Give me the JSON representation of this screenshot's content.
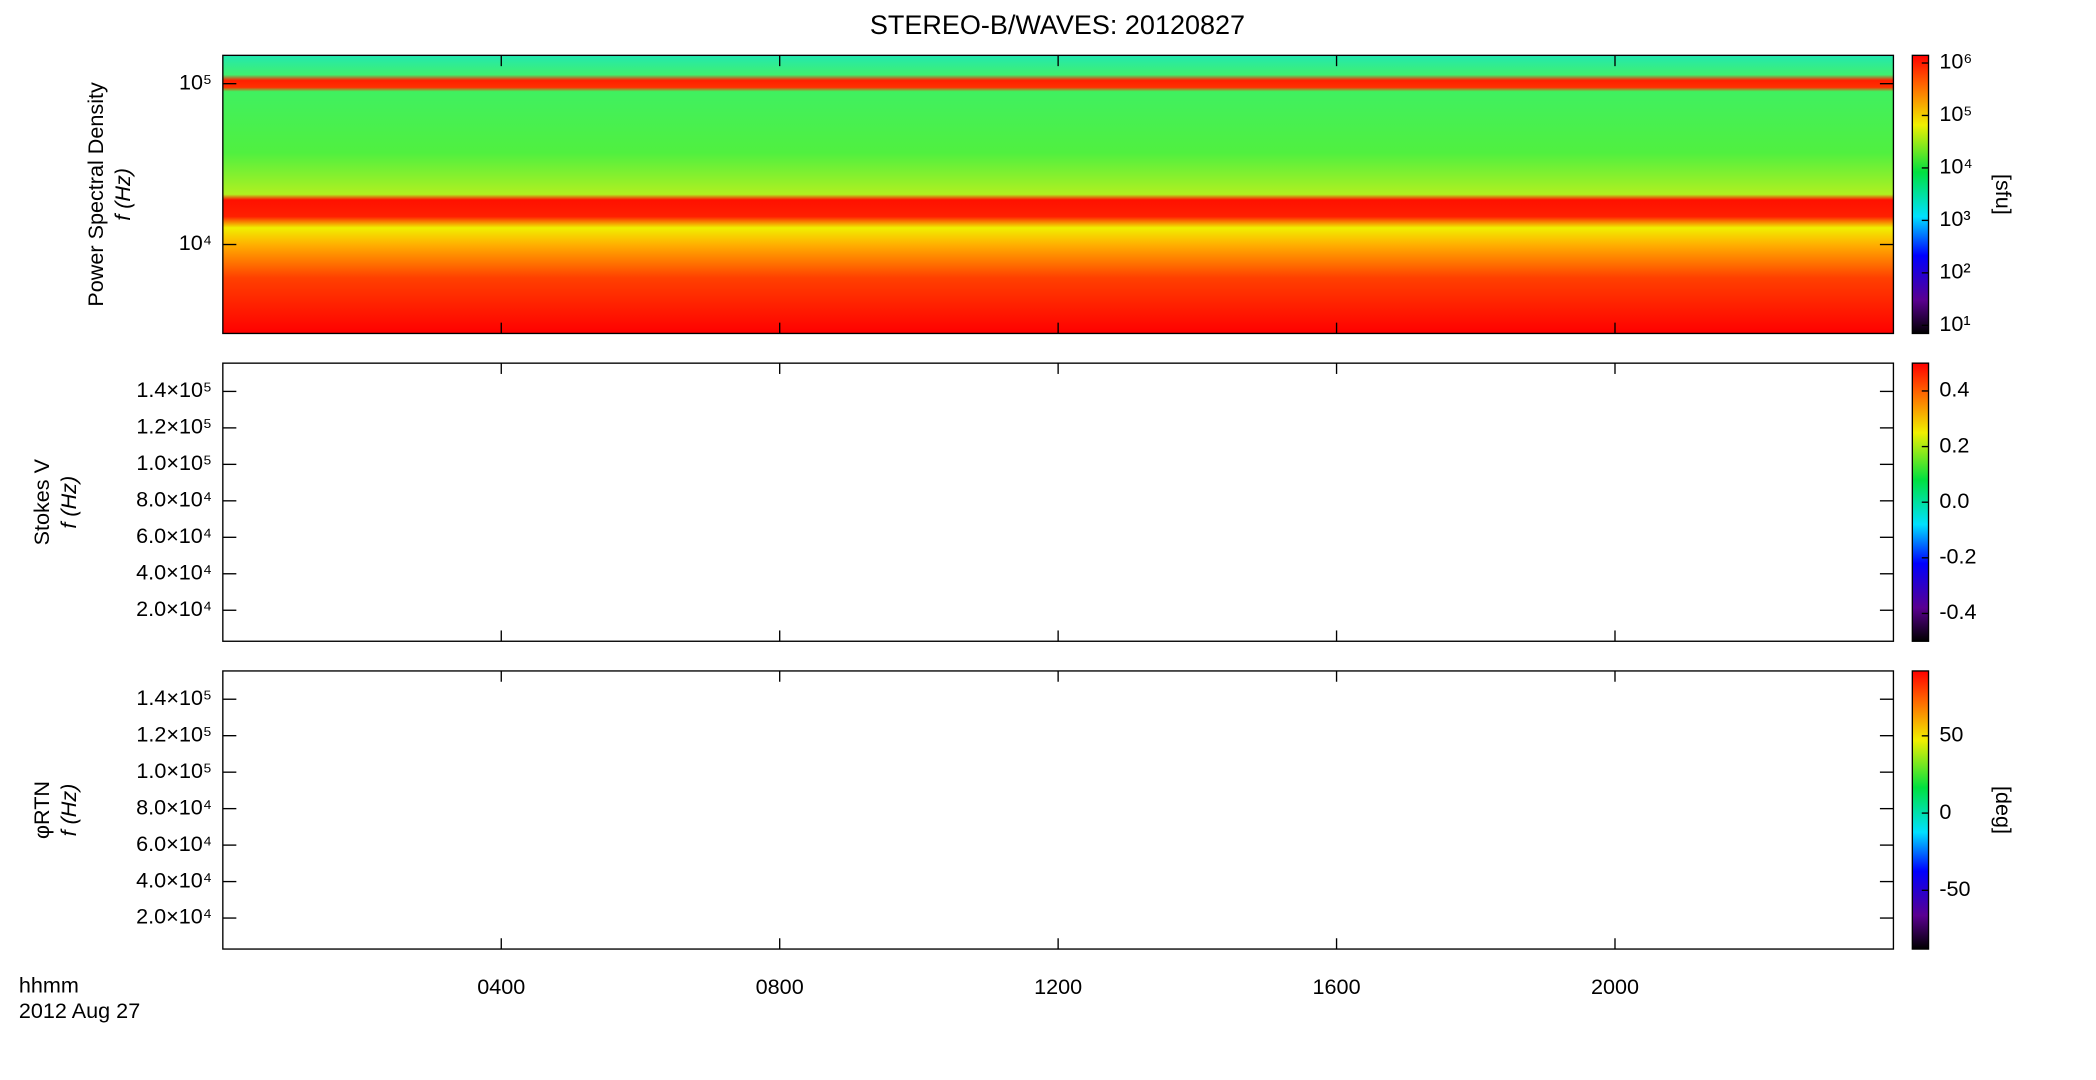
{
  "chart_data": [
    {
      "type": "spectrogram",
      "title": "STEREO-B/WAVES: 20120827",
      "y_label": "Power Spectral Density",
      "y_sublabel": "f (Hz)",
      "log_y": true,
      "ylim": [
        2800,
        150000
      ],
      "yticks": [
        {
          "value": 10000,
          "label": "10⁴"
        },
        {
          "value": 100000,
          "label": "10⁵"
        }
      ],
      "colorbar": {
        "label": "[sfu]",
        "log": true,
        "lim": [
          7,
          1400000
        ],
        "ticks": [
          {
            "value": 10,
            "label": "10¹"
          },
          {
            "value": 100,
            "label": "10²"
          },
          {
            "value": 1000,
            "label": "10³"
          },
          {
            "value": 10000,
            "label": "10⁴"
          },
          {
            "value": 100000,
            "label": "10⁵"
          },
          {
            "value": 1000000,
            "label": "10⁶"
          }
        ]
      }
    },
    {
      "type": "spectrogram",
      "y_label": "Stokes V",
      "y_sublabel": "f (Hz)",
      "log_y": false,
      "ylim": [
        3000,
        155500
      ],
      "yticks": [
        {
          "value": 20000,
          "label": "2.0×10⁴"
        },
        {
          "value": 40000,
          "label": "4.0×10⁴"
        },
        {
          "value": 60000,
          "label": "6.0×10⁴"
        },
        {
          "value": 80000,
          "label": "8.0×10⁴"
        },
        {
          "value": 100000,
          "label": "1.0×10⁵"
        },
        {
          "value": 120000,
          "label": "1.2×10⁵"
        },
        {
          "value": 140000,
          "label": "1.4×10⁵"
        }
      ],
      "colorbar": {
        "log": false,
        "lim": [
          -0.5,
          0.5
        ],
        "ticks": [
          -0.4,
          -0.2,
          {
            "value": 0,
            "label": "0.0"
          },
          0.2,
          0.4
        ]
      }
    },
    {
      "type": "spectrogram",
      "y_label": "φRTN",
      "y_sublabel": "f (Hz)",
      "log_y": false,
      "ylim": [
        3000,
        155500
      ],
      "yticks": [
        {
          "value": 20000,
          "label": "2.0×10⁴"
        },
        {
          "value": 40000,
          "label": "4.0×10⁴"
        },
        {
          "value": 60000,
          "label": "6.0×10⁴"
        },
        {
          "value": 80000,
          "label": "8.0×10⁴"
        },
        {
          "value": 100000,
          "label": "1.0×10⁵"
        },
        {
          "value": 120000,
          "label": "1.2×10⁵"
        },
        {
          "value": 140000,
          "label": "1.4×10⁵"
        }
      ],
      "colorbar": {
        "label": "[deg]",
        "log": false,
        "lim": [
          -88,
          92
        ],
        "ticks": [
          -50,
          0,
          50
        ]
      },
      "x_label": "hhmm",
      "date": "2012 Aug 27",
      "xlim": [
        0,
        24
      ],
      "xticks": [
        {
          "value": 4,
          "label": "0400"
        },
        {
          "value": 8,
          "label": "0800"
        },
        {
          "value": 12,
          "label": "1200"
        },
        {
          "value": 16,
          "label": "1600"
        },
        {
          "value": 20,
          "label": "2000"
        }
      ]
    }
  ]
}
